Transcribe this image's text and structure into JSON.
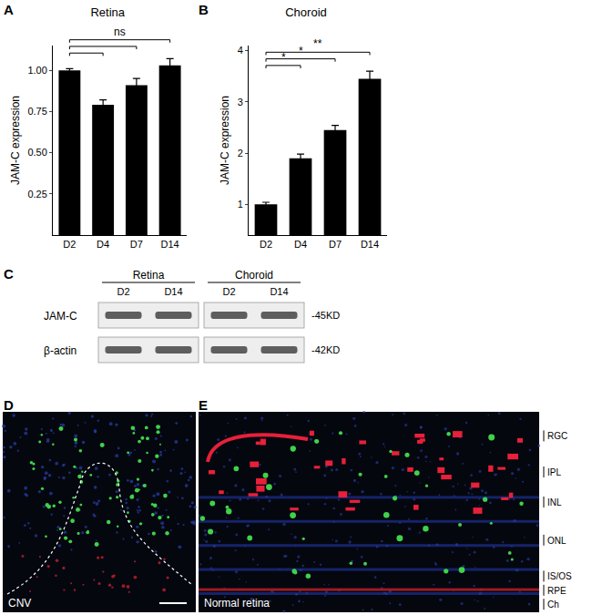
{
  "panel_labels": [
    "A",
    "B",
    "C",
    "D",
    "E"
  ],
  "chart_data": [
    {
      "type": "bar",
      "title": "Retina",
      "ylabel": "JAM-C expression",
      "categories": [
        "D2",
        "D4",
        "D7",
        "D14"
      ],
      "values": [
        1.0,
        0.79,
        0.91,
        1.03
      ],
      "errors": [
        0.01,
        0.03,
        0.04,
        0.04
      ],
      "color": "#000000",
      "ylim": [
        0,
        1.15
      ],
      "yticks": [
        0.25,
        {
          "value": 0.5,
          "label": "0.50"
        },
        0.75,
        {
          "value": 1,
          "label": "1.00"
        }
      ],
      "grid": false,
      "significance": [
        {
          "from": "D2",
          "to": "D4"
        },
        {
          "from": "D2",
          "to": "D7"
        },
        {
          "from": "D2",
          "to": "D14",
          "label": "ns"
        }
      ]
    },
    {
      "type": "bar",
      "title": "Choroid",
      "ylabel": "JAM-C expression",
      "categories": [
        "D2",
        "D4",
        "D7",
        "D14"
      ],
      "values": [
        1.0,
        1.9,
        2.45,
        3.45
      ],
      "errors": [
        0.04,
        0.08,
        0.09,
        0.15
      ],
      "color": "#000000",
      "ylim": [
        0.4,
        4.1
      ],
      "yticks": [
        1,
        2,
        3,
        4
      ],
      "grid": false,
      "significance": [
        {
          "from": "D2",
          "to": "D4",
          "label": "*"
        },
        {
          "from": "D2",
          "to": "D7",
          "label": "*"
        },
        {
          "from": "D2",
          "to": "D14",
          "label": "**"
        }
      ]
    }
  ],
  "blot": {
    "columns": [
      {
        "group": "Retina",
        "lanes": [
          "D2",
          "D14"
        ]
      },
      {
        "group": "Choroid",
        "lanes": [
          "D2",
          "D14"
        ]
      }
    ],
    "rows": [
      {
        "name": "JAM-C",
        "size": "-45KD"
      },
      {
        "name": "β-actin",
        "size": "-42KD"
      }
    ]
  },
  "micrographs": {
    "D": {
      "label": "CNV"
    },
    "E": {
      "label": "Normal retina",
      "layers": [
        "RGC",
        "IPL",
        "INL",
        "ONL",
        "IS/OS",
        "RPE",
        "Ch"
      ]
    }
  }
}
